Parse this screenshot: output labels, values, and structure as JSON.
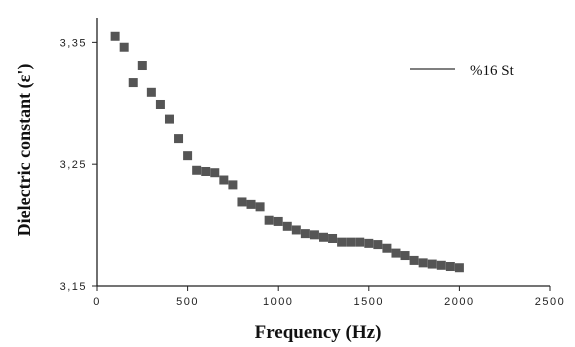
{
  "chart_data": {
    "type": "scatter",
    "title": "",
    "xlabel": "Frequency (Hz)",
    "ylabel": "Dielectric constant (ε')",
    "xlim": [
      0,
      2500
    ],
    "ylim": [
      3.15,
      3.37
    ],
    "x_ticks": [
      "0",
      "500",
      "1000",
      "1500",
      "2000",
      "2500"
    ],
    "y_ticks": [
      "3,15",
      "3,25",
      "3,35"
    ],
    "y_tick_values": [
      3.15,
      3.25,
      3.35
    ],
    "grid": false,
    "legend_position": "top-right",
    "series": [
      {
        "name": "%16 St",
        "color": "#555555",
        "marker": "square",
        "x": [
          100,
          150,
          200,
          250,
          300,
          350,
          400,
          450,
          500,
          550,
          600,
          650,
          700,
          750,
          800,
          850,
          900,
          950,
          1000,
          1050,
          1100,
          1150,
          1200,
          1250,
          1300,
          1350,
          1400,
          1450,
          1500,
          1550,
          1600,
          1650,
          1700,
          1750,
          1800,
          1850,
          1900,
          1950,
          2000
        ],
        "y": [
          3.355,
          3.346,
          3.317,
          3.331,
          3.309,
          3.299,
          3.287,
          3.271,
          3.257,
          3.245,
          3.244,
          3.243,
          3.237,
          3.233,
          3.219,
          3.217,
          3.215,
          3.204,
          3.203,
          3.199,
          3.196,
          3.193,
          3.192,
          3.19,
          3.189,
          3.186,
          3.186,
          3.186,
          3.185,
          3.184,
          3.181,
          3.177,
          3.175,
          3.171,
          3.169,
          3.168,
          3.167,
          3.166,
          3.165
        ]
      }
    ]
  }
}
